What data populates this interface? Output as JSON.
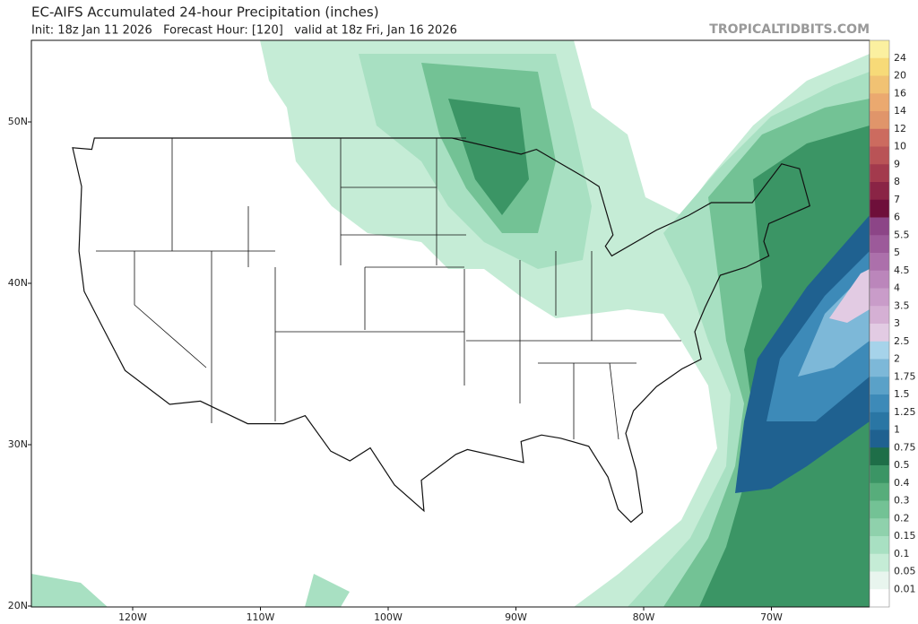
{
  "header": {
    "title": "EC-AIFS Accumulated 24-hour Precipitation (inches)",
    "subtitle": "Init: 18z Jan 11 2026   Forecast Hour: [120]   valid at 18z Fri, Jan 16 2026",
    "watermark": "TROPICALTIDBITS.COM"
  },
  "map": {
    "lat_labels": [
      "50N",
      "40N",
      "30N",
      "20N"
    ],
    "lon_labels": [
      "120W",
      "110W",
      "100W",
      "90W",
      "80W",
      "70W"
    ]
  },
  "colorbar": {
    "labels": [
      "24",
      "20",
      "16",
      "14",
      "12",
      "10",
      "9",
      "8",
      "7",
      "6",
      "5.5",
      "5",
      "4.5",
      "4",
      "3.5",
      "3",
      "2.5",
      "2",
      "1.75",
      "1.5",
      "1.25",
      "1",
      "0.75",
      "0.5",
      "0.4",
      "0.3",
      "0.2",
      "0.15",
      "0.1",
      "0.05",
      "0.01"
    ],
    "colors": [
      "#fbf0a0",
      "#f7da78",
      "#f1c273",
      "#eba96f",
      "#e0956a",
      "#cc6b5f",
      "#b95356",
      "#a33a4d",
      "#8a2445",
      "#6e0f3a",
      "#8c4587",
      "#9c5a9a",
      "#ac70ab",
      "#bb86bb",
      "#c99cc9",
      "#d5b0d4",
      "#e2cbe3",
      "#a6d3ea",
      "#7db8d8",
      "#5aa1c8",
      "#3d8ab8",
      "#2a76a4",
      "#1f6190",
      "#1e6e48",
      "#3b9565",
      "#57ad7b",
      "#73c295",
      "#8fd1ac",
      "#a8e0c2",
      "#c5ecd6",
      "#e8f5ee",
      "#ffffff"
    ]
  }
}
